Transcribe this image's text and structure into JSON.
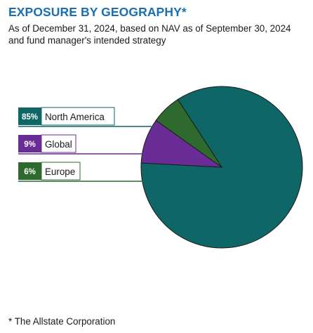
{
  "header": {
    "title": "EXPOSURE BY GEOGRAPHY*",
    "subtitle_line1": "As of December 31, 2024, based on NAV as of September 30, 2024",
    "subtitle_line2": "and fund manager's intended strategy"
  },
  "footnote": "* The Allstate Corporation",
  "chart_data": {
    "type": "pie",
    "title": "EXPOSURE BY GEOGRAPHY*",
    "slices": [
      {
        "label": "North America",
        "value": 85,
        "value_label": "85%",
        "color": "#0f6666"
      },
      {
        "label": "Global",
        "value": 9,
        "value_label": "9%",
        "color": "#6a2d96"
      },
      {
        "label": "Europe",
        "value": 6,
        "value_label": "6%",
        "color": "#2e6a2e"
      }
    ],
    "legend_placement": "left",
    "slice_border_color": "#1a1a1a"
  }
}
